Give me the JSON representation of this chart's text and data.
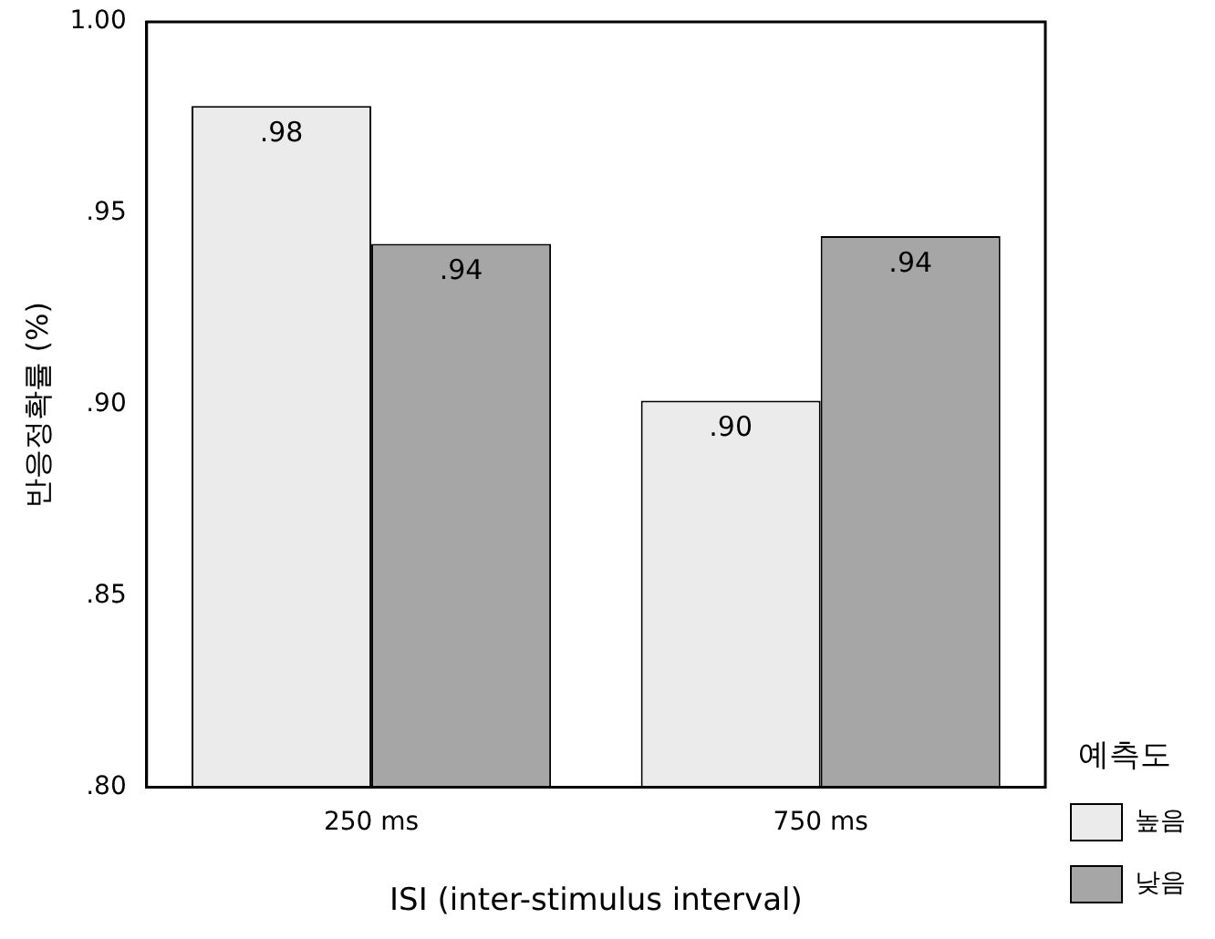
{
  "chart_data": {
    "type": "bar",
    "xlabel": "ISI (inter-stimulus interval)",
    "ylabel": "반응정확률 (%)",
    "legend_title": "예측도",
    "categories": [
      "250 ms",
      "750 ms"
    ],
    "series": [
      {
        "name": "높음",
        "color": "#ebebeb",
        "values": [
          0.978,
          0.901
        ],
        "value_labels": [
          ".98",
          ".90"
        ]
      },
      {
        "name": "낮음",
        "color": "#a6a6a6",
        "values": [
          0.942,
          0.944
        ],
        "value_labels": [
          ".94",
          ".94"
        ]
      }
    ],
    "ylim": [
      0.8,
      1.0
    ],
    "yticks": [
      {
        "value": 0.8,
        "label": ".80"
      },
      {
        "value": 0.85,
        "label": ".85"
      },
      {
        "value": 0.9,
        "label": ".90"
      },
      {
        "value": 0.95,
        "label": ".95"
      },
      {
        "value": 1.0,
        "label": "1.00"
      }
    ],
    "grid": false,
    "legend": "bottom right"
  }
}
